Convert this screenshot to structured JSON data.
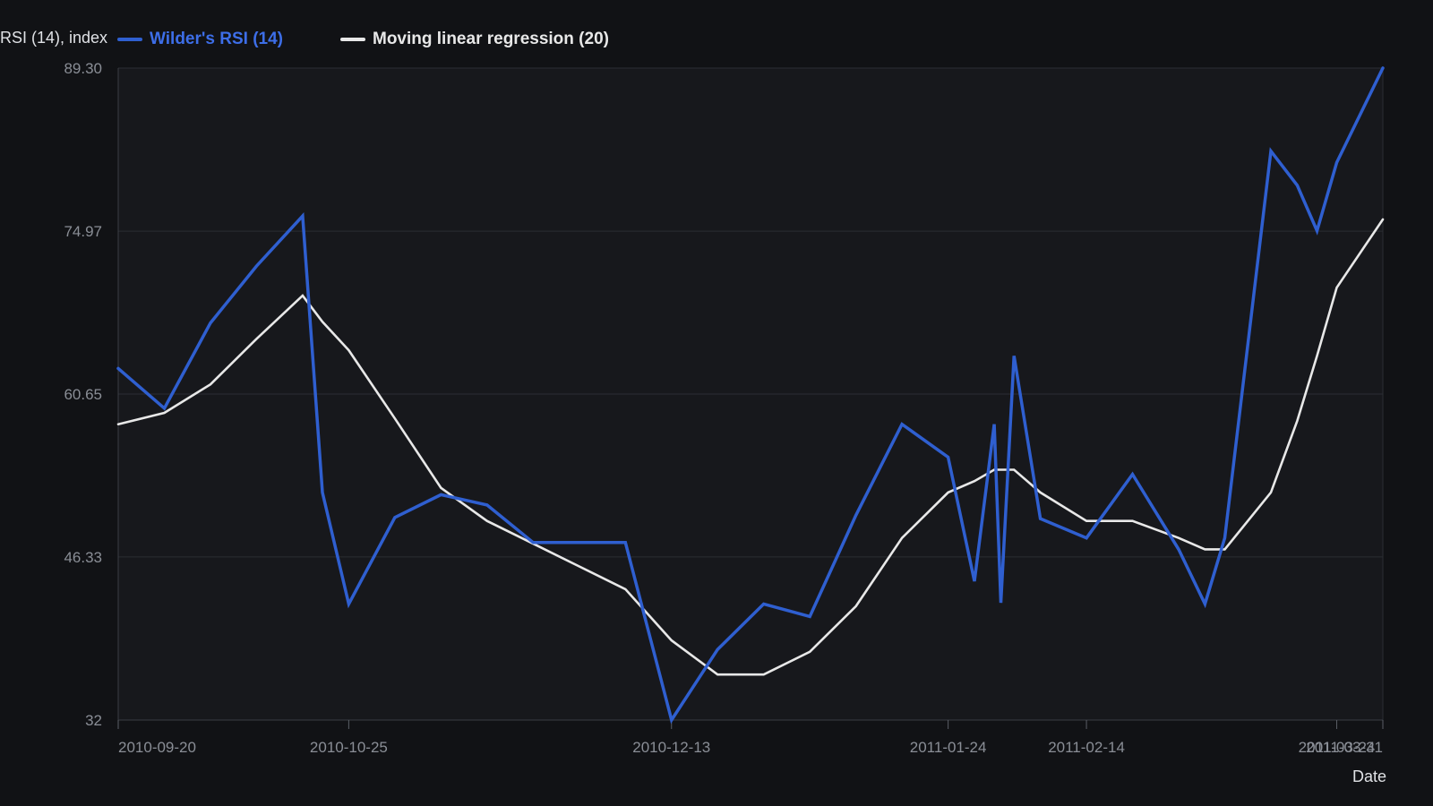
{
  "chart_data": {
    "type": "line",
    "ylabel": "RSI (14), index",
    "xlabel": "Date",
    "ylim": [
      32,
      89.3
    ],
    "yticks": [
      32,
      46.33,
      60.65,
      74.97,
      89.3
    ],
    "ytick_labels": [
      "32",
      "46.33",
      "60.65",
      "74.97",
      "89.30"
    ],
    "xlim": [
      "2010-09-20",
      "2011-03-31"
    ],
    "xticks": [
      "2010-09-20",
      "2010-10-25",
      "2010-12-13",
      "2011-01-24",
      "2011-02-14",
      "2011-03-24",
      "2011-03-31"
    ],
    "grid": true,
    "legend_position": "top-left",
    "x": [
      "2010-09-20",
      "2010-09-27",
      "2010-10-04",
      "2010-10-11",
      "2010-10-18",
      "2010-10-21",
      "2010-10-25",
      "2010-11-01",
      "2010-11-08",
      "2010-11-15",
      "2010-11-22",
      "2010-11-29",
      "2010-12-06",
      "2010-12-13",
      "2010-12-20",
      "2010-12-27",
      "2011-01-03",
      "2011-01-10",
      "2011-01-17",
      "2011-01-24",
      "2011-01-28",
      "2011-01-31",
      "2011-02-01",
      "2011-02-03",
      "2011-02-07",
      "2011-02-14",
      "2011-02-21",
      "2011-02-28",
      "2011-03-04",
      "2011-03-07",
      "2011-03-14",
      "2011-03-18",
      "2011-03-21",
      "2011-03-24",
      "2011-03-31"
    ],
    "series": [
      {
        "name": "Wilder's RSI (14)",
        "color": "#2f5fd0",
        "values": [
          62.9,
          59.4,
          66.9,
          71.9,
          76.3,
          52.0,
          42.2,
          49.8,
          51.8,
          50.9,
          47.6,
          47.6,
          47.6,
          32.0,
          38.2,
          42.2,
          41.1,
          50.0,
          58.0,
          55.1,
          44.2,
          58.0,
          42.3,
          64.0,
          49.7,
          48.0,
          53.6,
          47.0,
          42.2,
          48.0,
          82.0,
          79.0,
          75.0,
          81.0,
          89.3
        ]
      },
      {
        "name": "Moving linear regression (20)",
        "color": "#e8e8e8",
        "values": [
          58.0,
          59.0,
          61.5,
          65.5,
          69.3,
          67.0,
          64.5,
          58.5,
          52.4,
          49.5,
          47.5,
          45.5,
          43.5,
          39.0,
          36.0,
          36.0,
          38.0,
          42.0,
          48.0,
          52.0,
          53.0,
          54.0,
          54.0,
          54.0,
          52.0,
          49.5,
          49.5,
          48.0,
          47.0,
          47.0,
          52.0,
          58.3,
          64.0,
          70.0,
          76.0
        ]
      }
    ]
  }
}
